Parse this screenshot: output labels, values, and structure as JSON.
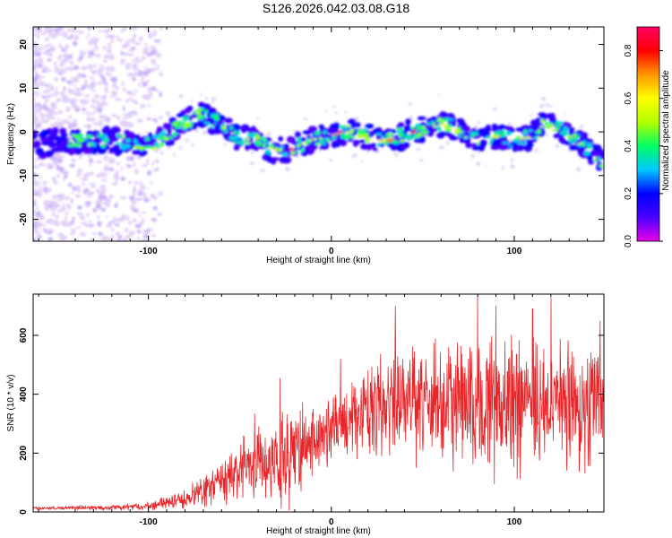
{
  "page_title": "S126.2026.042.03.08.G18",
  "colors": {
    "background": "#ffffff",
    "axes": "#000000",
    "snr_line": "#e8262a",
    "noise_dots": "#c9a8f2",
    "colorbar_stops": [
      "#e600e6",
      "#4b00ff",
      "#0000ff",
      "#00c8ff",
      "#00ff64",
      "#b4ff00",
      "#ffff00",
      "#ff9600",
      "#ff0000",
      "#ff0066"
    ]
  },
  "chart_data": [
    {
      "id": "spectrogram",
      "type": "heatmap",
      "title": "S126.2026.042.03.08.G18",
      "xlabel": "Height of straight line (km)",
      "ylabel": "Frequency (Hz)",
      "xlim": [
        -163,
        149
      ],
      "ylim": [
        -25,
        24
      ],
      "x_ticks": [
        -100,
        0,
        100
      ],
      "x_tick_labels": [
        "-100",
        "0",
        "100"
      ],
      "y_ticks": [
        -20,
        -10,
        0,
        10,
        20
      ],
      "y_tick_labels": [
        "-20",
        "-10",
        "0",
        "10",
        "20"
      ],
      "ridge_trace": {
        "x": [
          -163,
          -140,
          -120,
          -100,
          -90,
          -80,
          -72,
          -62,
          -52,
          -42,
          -32,
          -22,
          -12,
          -2,
          8,
          18,
          28,
          38,
          45,
          55,
          63,
          70,
          80,
          90,
          100,
          110,
          117,
          125,
          135,
          140,
          149
        ],
        "y": [
          -3,
          -2,
          -2,
          -3,
          -1,
          2,
          4,
          2,
          -1,
          -2,
          -4,
          -4,
          -2,
          -1,
          0,
          -1,
          -2,
          -1,
          0,
          1,
          2,
          0,
          -2,
          -1,
          -2,
          -1,
          2,
          1,
          -2,
          -4,
          -7
        ]
      },
      "colorbar": {
        "label": "Normalized spectral amplitude",
        "range": [
          0.0,
          0.9
        ],
        "ticks": [
          0.0,
          0.2,
          0.4,
          0.6,
          0.8
        ],
        "tick_labels": [
          "0.0",
          "0.2",
          "0.4",
          "0.6",
          "0.8"
        ]
      }
    },
    {
      "id": "snr",
      "type": "line",
      "xlabel": "Height of straight line (km)",
      "ylabel": "SNR (10 * v/v)",
      "xlim": [
        -163,
        149
      ],
      "ylim": [
        0,
        740
      ],
      "x_ticks": [
        -100,
        0,
        100
      ],
      "x_tick_labels": [
        "-100",
        "0",
        "100"
      ],
      "y_ticks": [
        0,
        200,
        400,
        600
      ],
      "y_tick_labels": [
        "0",
        "200",
        "400",
        "600"
      ],
      "series": [
        {
          "name": "SNR",
          "x": [
            -163,
            -140,
            -120,
            -100,
            -90,
            -80,
            -70,
            -60,
            -50,
            -40,
            -35,
            -30,
            -25,
            -20,
            -10,
            0,
            10,
            20,
            30,
            40,
            50,
            60,
            70,
            80,
            90,
            100,
            110,
            120,
            130,
            140,
            149
          ],
          "mean": [
            12,
            15,
            15,
            20,
            30,
            45,
            70,
            100,
            140,
            170,
            150,
            140,
            170,
            210,
            250,
            280,
            320,
            350,
            360,
            370,
            370,
            360,
            380,
            360,
            360,
            370,
            350,
            370,
            360,
            350,
            380
          ],
          "amplitude": [
            5,
            8,
            10,
            15,
            25,
            40,
            60,
            90,
            130,
            150,
            120,
            150,
            200,
            180,
            150,
            130,
            150,
            200,
            220,
            240,
            260,
            270,
            280,
            300,
            280,
            260,
            270,
            260,
            260,
            250,
            230
          ],
          "peaks": [
            {
              "x": -42,
              "y": 335
            },
            {
              "x": -28,
              "y": 455
            },
            {
              "x": -10,
              "y": 350
            },
            {
              "x": 5,
              "y": 520
            },
            {
              "x": 35,
              "y": 700
            },
            {
              "x": 80,
              "y": 735
            },
            {
              "x": 90,
              "y": 700
            },
            {
              "x": 110,
              "y": 690
            },
            {
              "x": 120,
              "y": 730
            },
            {
              "x": 147,
              "y": 650
            }
          ]
        }
      ]
    }
  ]
}
